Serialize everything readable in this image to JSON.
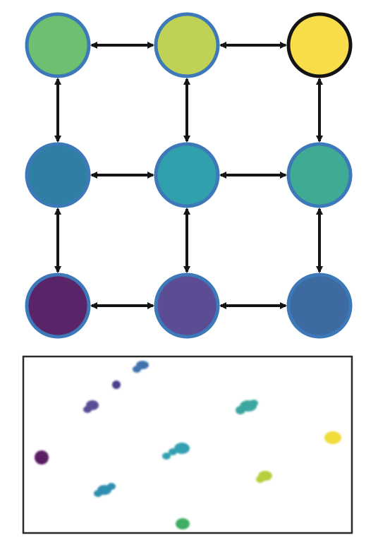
{
  "colors": {
    "node_ring": "#3d78b8",
    "node_ring_highlight": "#141414",
    "arrow": "#141414",
    "panel_border": "#2a2a2a",
    "background": "#ffffff"
  },
  "grid": {
    "rows": 3,
    "cols": 3,
    "nodes": [
      {
        "id": "r0c0",
        "row": 0,
        "col": 0,
        "fill": "#6cc06f",
        "highlight": false
      },
      {
        "id": "r0c1",
        "row": 0,
        "col": 1,
        "fill": "#bfd255",
        "highlight": false
      },
      {
        "id": "r0c2",
        "row": 0,
        "col": 2,
        "fill": "#f7dd4a",
        "highlight": true
      },
      {
        "id": "r1c0",
        "row": 1,
        "col": 0,
        "fill": "#2f7fa5",
        "highlight": false
      },
      {
        "id": "r1c1",
        "row": 1,
        "col": 1,
        "fill": "#30a0ac",
        "highlight": false
      },
      {
        "id": "r1c2",
        "row": 1,
        "col": 2,
        "fill": "#3fab95",
        "highlight": false
      },
      {
        "id": "r2c0",
        "row": 2,
        "col": 0,
        "fill": "#5a2469",
        "highlight": false
      },
      {
        "id": "r2c1",
        "row": 2,
        "col": 1,
        "fill": "#5c4c93",
        "highlight": false
      },
      {
        "id": "r2c2",
        "row": 2,
        "col": 2,
        "fill": "#3d6aa0",
        "highlight": false
      }
    ],
    "edges": [
      {
        "from": "r0c0",
        "to": "r0c1"
      },
      {
        "from": "r0c1",
        "to": "r0c2"
      },
      {
        "from": "r1c0",
        "to": "r1c1"
      },
      {
        "from": "r1c1",
        "to": "r1c2"
      },
      {
        "from": "r2c0",
        "to": "r2c1"
      },
      {
        "from": "r2c1",
        "to": "r2c2"
      },
      {
        "from": "r0c0",
        "to": "r1c0"
      },
      {
        "from": "r1c0",
        "to": "r2c0"
      },
      {
        "from": "r0c1",
        "to": "r1c1"
      },
      {
        "from": "r1c1",
        "to": "r2c1"
      },
      {
        "from": "r0c2",
        "to": "r1c2"
      },
      {
        "from": "r1c2",
        "to": "r2c2"
      }
    ]
  },
  "embedding_clusters": [
    {
      "fill": "#3f72ad",
      "node": "r2c2"
    },
    {
      "fill": "#4a3f8e",
      "node": "r2c1"
    },
    {
      "fill": "#5a4d96",
      "node": "r2c1"
    },
    {
      "fill": "#5a1f63",
      "node": "r2c0"
    },
    {
      "fill": "#3aa7a0",
      "node": "r1c2"
    },
    {
      "fill": "#33a0b0",
      "node": "r1c1"
    },
    {
      "fill": "#2f8fb0",
      "node": "r1c0"
    },
    {
      "fill": "#f0dc3a",
      "node": "r0c2"
    },
    {
      "fill": "#b7cf3e",
      "node": "r0c1"
    },
    {
      "fill": "#3fae62",
      "node": "r0c0"
    }
  ]
}
